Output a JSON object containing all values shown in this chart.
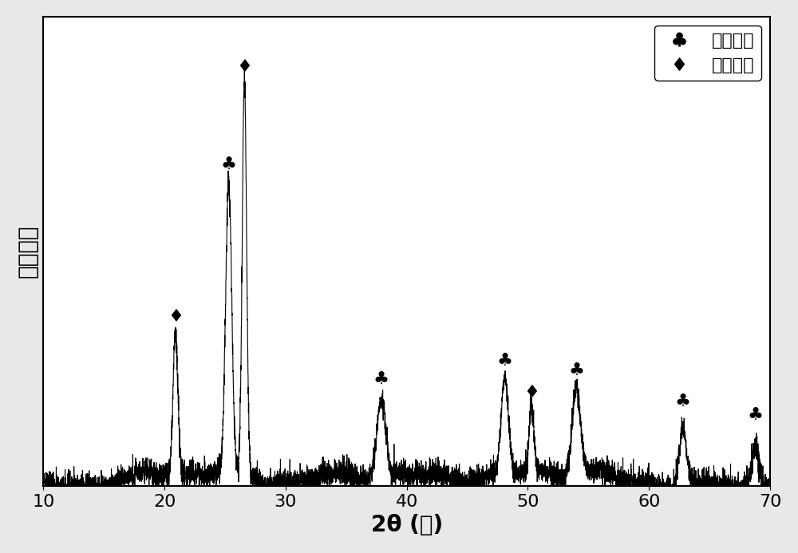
{
  "xlabel": "2θ (度)",
  "ylabel": "相对强度",
  "xlim": [
    10,
    70
  ],
  "ylim": [
    0,
    1.0
  ],
  "title": "",
  "legend_tio2": "二氧化馒",
  "legend_sio2": "二氧化硅",
  "background_color": "#ffffff",
  "plot_bg_color": "#ffffff",
  "line_color": "#000000",
  "tick_fontsize": 16,
  "label_fontsize": 20,
  "legend_fontsize": 16,
  "tio2_peaks": [
    25.3,
    37.9,
    48.1,
    54.0,
    62.8,
    68.8
  ],
  "sio2_peaks": [
    20.9,
    26.6,
    50.3
  ],
  "noise_seed": 42
}
